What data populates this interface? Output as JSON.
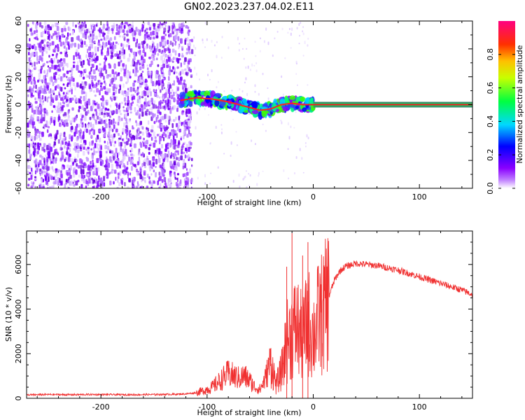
{
  "title": "GN02.2023.237.04.02.E11",
  "chart_data": [
    {
      "type": "heatmap",
      "name": "spectrogram",
      "xlabel": "Height of straight line (km)",
      "ylabel": "Frequency (Hz)",
      "xlim": [
        -270,
        150
      ],
      "ylim": [
        -60,
        60
      ],
      "xticks": [
        -200,
        -100,
        0,
        100
      ],
      "yticks": [
        -60,
        -40,
        -20,
        0,
        20,
        40,
        60
      ],
      "ytick_labels": [
        "-60",
        "-40",
        "-20",
        "0",
        "20",
        "40",
        "60"
      ],
      "noise_region_x": [
        -270,
        -115
      ],
      "signal_track": [
        {
          "x": -125,
          "y": 3
        },
        {
          "x": -110,
          "y": 5
        },
        {
          "x": -95,
          "y": 4
        },
        {
          "x": -80,
          "y": 2
        },
        {
          "x": -70,
          "y": 0
        },
        {
          "x": -60,
          "y": -2
        },
        {
          "x": -50,
          "y": -4
        },
        {
          "x": -40,
          "y": -3
        },
        {
          "x": -30,
          "y": 0
        },
        {
          "x": -20,
          "y": 1
        },
        {
          "x": -10,
          "y": 0
        },
        {
          "x": 0,
          "y": 0
        },
        {
          "x": 150,
          "y": 0
        }
      ],
      "colorbar": {
        "label": "Normalized spectral amplitude",
        "range": [
          0,
          1
        ],
        "ticks": [
          0.0,
          0.2,
          0.4,
          0.6,
          0.8
        ],
        "tick_labels": [
          "0.0",
          "0.2",
          "0.4",
          "0.6",
          "0.8"
        ],
        "colors": [
          "#ffffff",
          "#8a00ff",
          "#0000ff",
          "#00e0ff",
          "#00ff00",
          "#ffff00",
          "#ff8000",
          "#ff0000",
          "#ff0080"
        ]
      }
    },
    {
      "type": "line",
      "name": "snr",
      "xlabel": "Height of straight line (km)",
      "ylabel": "SNR (10 * v/v)",
      "xlim": [
        -270,
        150
      ],
      "ylim": [
        0,
        7500
      ],
      "xticks": [
        -200,
        -100,
        0,
        100
      ],
      "yticks": [
        0,
        2000,
        4000,
        6000
      ],
      "color": "#f03030",
      "series": [
        {
          "name": "SNR",
          "x": [
            -270,
            -250,
            -230,
            -210,
            -190,
            -170,
            -150,
            -130,
            -120,
            -110,
            -100,
            -95,
            -90,
            -85,
            -80,
            -75,
            -70,
            -65,
            -60,
            -55,
            -50,
            -45,
            -40,
            -35,
            -30,
            -25,
            -20,
            -15,
            -10,
            -5,
            0,
            5,
            10,
            15,
            20,
            25,
            30,
            40,
            50,
            60,
            70,
            80,
            90,
            100,
            110,
            120,
            130,
            140,
            150
          ],
          "y": [
            150,
            170,
            160,
            170,
            165,
            160,
            170,
            180,
            200,
            250,
            400,
            500,
            700,
            900,
            1100,
            1000,
            900,
            1000,
            800,
            500,
            400,
            900,
            1700,
            600,
            1200,
            2500,
            3000,
            3200,
            2600,
            3500,
            2800,
            3600,
            3900,
            4600,
            5300,
            5700,
            5900,
            6050,
            6000,
            5950,
            5850,
            5750,
            5600,
            5450,
            5300,
            5150,
            5000,
            4850,
            4650
          ]
        }
      ]
    }
  ]
}
